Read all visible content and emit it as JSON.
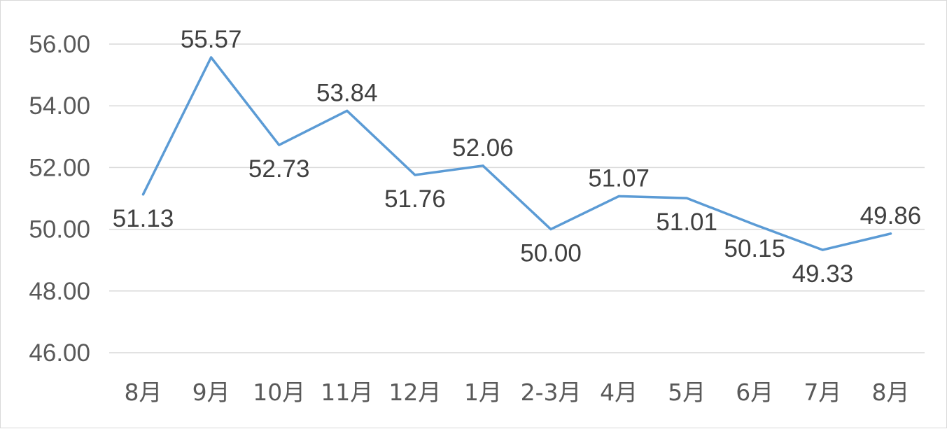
{
  "chart_data": {
    "type": "line",
    "title": "",
    "xlabel": "",
    "ylabel": "",
    "categories": [
      "8月",
      "9月",
      "10月",
      "11月",
      "12月",
      "1月",
      "2-3月",
      "4月",
      "5月",
      "6月",
      "7月",
      "8月"
    ],
    "series": [
      {
        "values": [
          51.13,
          55.57,
          52.73,
          53.84,
          51.76,
          52.06,
          50.0,
          51.07,
          51.01,
          50.15,
          49.33,
          49.86
        ]
      }
    ],
    "data_labels": [
      "51.13",
      "55.57",
      "52.73",
      "53.84",
      "51.76",
      "52.06",
      "50.00",
      "51.07",
      "51.01",
      "50.15",
      "49.33",
      "49.86"
    ],
    "ylim": [
      46,
      56
    ],
    "y_ticks": [
      "46.00",
      "48.00",
      "50.00",
      "52.00",
      "54.00",
      "56.00"
    ],
    "grid": true,
    "legend": "none",
    "colors": {
      "line": "#5b9bd5",
      "grid": "#d9d9d9"
    }
  }
}
